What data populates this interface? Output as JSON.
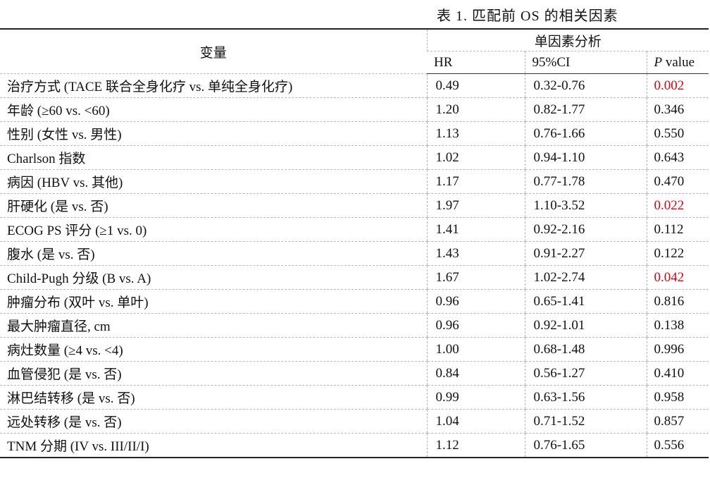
{
  "caption": "表 1. 匹配前 OS 的相关因素",
  "header": {
    "variable": "变量",
    "group": "单因素分析",
    "hr": "HR",
    "ci": "95%CI",
    "p_italic": "P",
    "p_rest": " value"
  },
  "colors": {
    "significant": "#e3000f",
    "text": "#111111"
  },
  "rows": [
    {
      "variable": "治疗方式 (TACE 联合全身化疗 vs. 单纯全身化疗)",
      "hr": "0.49",
      "ci": "0.32-0.76",
      "p": "0.002",
      "significant": true
    },
    {
      "variable": "年龄 (≥60 vs. <60)",
      "hr": "1.20",
      "ci": "0.82-1.77",
      "p": "0.346",
      "significant": false
    },
    {
      "variable": "性别 (女性  vs. 男性)",
      "hr": "1.13",
      "ci": "0.76-1.66",
      "p": "0.550",
      "significant": false
    },
    {
      "variable": "Charlson 指数",
      "hr": "1.02",
      "ci": "0.94-1.10",
      "p": "0.643",
      "significant": false
    },
    {
      "variable": "病因 (HBV vs. 其他)",
      "hr": "1.17",
      "ci": "0.77-1.78",
      "p": "0.470",
      "significant": false
    },
    {
      "variable": "肝硬化 (是 vs. 否)",
      "hr": "1.97",
      "ci": "1.10-3.52",
      "p": "0.022",
      "significant": true
    },
    {
      "variable": "ECOG PS 评分 (≥1 vs. 0)",
      "hr": "1.41",
      "ci": "0.92-2.16",
      "p": "0.112",
      "significant": false
    },
    {
      "variable": "腹水 (是 vs. 否)",
      "hr": "1.43",
      "ci": "0.91-2.27",
      "p": "0.122",
      "significant": false
    },
    {
      "variable": "Child-Pugh 分级 (B vs. A)",
      "hr": "1.67",
      "ci": "1.02-2.74",
      "p": "0.042",
      "significant": true
    },
    {
      "variable": "肿瘤分布 (双叶 vs. 单叶)",
      "hr": "0.96",
      "ci": "0.65-1.41",
      "p": "0.816",
      "significant": false
    },
    {
      "variable": "最大肿瘤直径, cm",
      "hr": "0.96",
      "ci": "0.92-1.01",
      "p": "0.138",
      "significant": false
    },
    {
      "variable": "病灶数量 (≥4 vs. <4)",
      "hr": "1.00",
      "ci": "0.68-1.48",
      "p": "0.996",
      "significant": false
    },
    {
      "variable": "血管侵犯 (是 vs. 否)",
      "hr": "0.84",
      "ci": "0.56-1.27",
      "p": "0.410",
      "significant": false
    },
    {
      "variable": "淋巴结转移 (是 vs. 否)",
      "hr": "0.99",
      "ci": "0.63-1.56",
      "p": "0.958",
      "significant": false
    },
    {
      "variable": "远处转移 (是 vs. 否)",
      "hr": "1.04",
      "ci": "0.71-1.52",
      "p": "0.857",
      "significant": false
    },
    {
      "variable": "TNM 分期 (IV vs. III/II/I)",
      "hr": "1.12",
      "ci": "0.76-1.65",
      "p": "0.556",
      "significant": false
    }
  ]
}
